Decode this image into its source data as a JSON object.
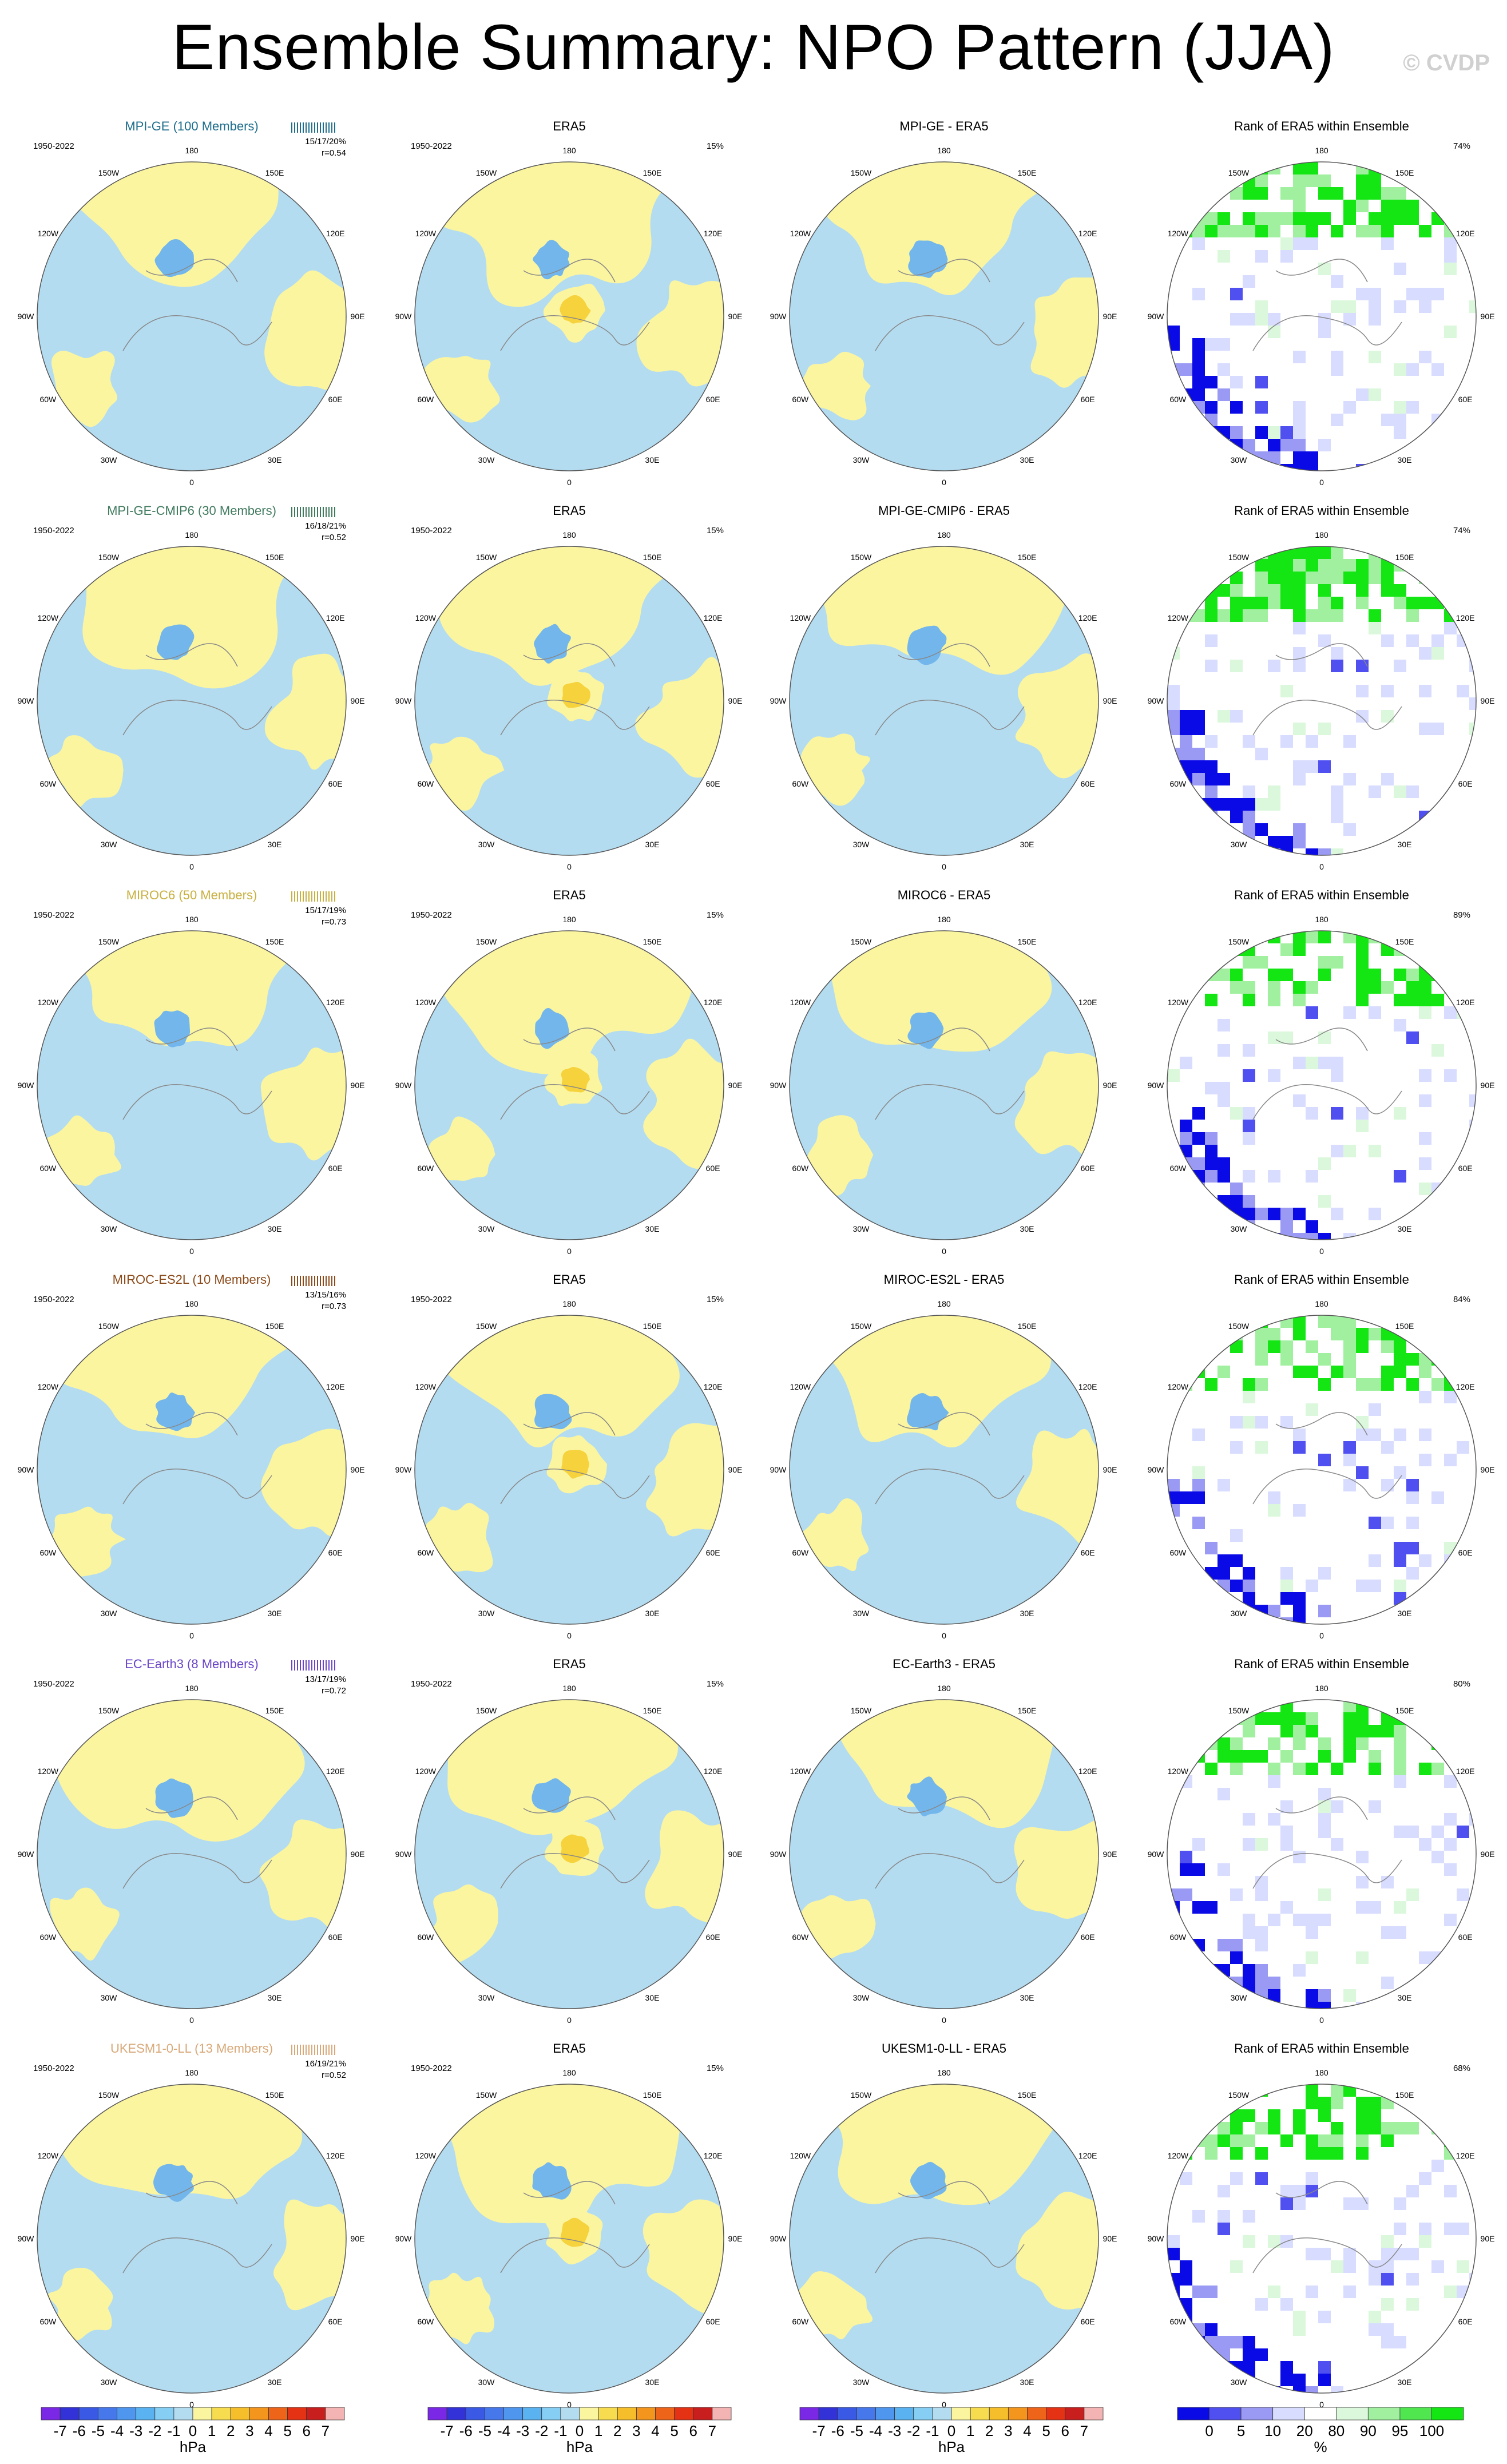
{
  "title": "Ensemble Summary: NPO Pattern (JJA)",
  "watermark": "© CVDP",
  "period": "1950-2022",
  "lon_labels": [
    "180",
    "150E",
    "120E",
    "90E",
    "60E",
    "30E",
    "0",
    "30W",
    "60W",
    "90W",
    "120W",
    "150W"
  ],
  "colors": {
    "ocean_bg": "#b4dcf0",
    "positive_fill": "#fbf5a0",
    "negative_fill": "#72b6ec",
    "strong_positive": "#f6d23c",
    "rank_low": "#0a0ae6",
    "rank_mid": "#d8dcff",
    "rank_high": "#14e614",
    "coast": "#888888"
  },
  "chart_data": [
    {
      "type": "heatmap",
      "map": "polar_stereographic_nh",
      "row_titles": [
        "MPI-GE (100 Members)",
        "MPI-GE-CMIP6 (30 Members)",
        "MIROC6 (50 Members)",
        "MIROC-ES2L (10 Members)",
        "EC-Earth3 (8 Members)",
        "UKESM1-0-LL (13 Members)"
      ],
      "row_title_colors": [
        "#1f6e8c",
        "#3f7a5e",
        "#c8b040",
        "#8b4a1a",
        "#6a46c8",
        "#d8a878"
      ],
      "percent_stats": [
        "15/17/20%",
        "16/18/21%",
        "15/17/19%",
        "13/15/16%",
        "13/17/19%",
        "16/19/21%"
      ],
      "pattern_correlations": [
        "r=0.54",
        "r=0.52",
        "r=0.73",
        "r=0.73",
        "r=0.72",
        "r=0.52"
      ],
      "era5_title": "ERA5",
      "era5_percent": "15%",
      "difference_titles": [
        "MPI-GE - ERA5",
        "MPI-GE-CMIP6 - ERA5",
        "MIROC6 - ERA5",
        "MIROC-ES2L - ERA5",
        "EC-Earth3 - ERA5",
        "UKESM1-0-LL - ERA5"
      ],
      "rank_title": "Rank of ERA5 within Ensemble",
      "rank_percents": [
        "74%",
        "74%",
        "89%",
        "84%",
        "80%",
        "68%"
      ]
    }
  ],
  "colorbars": {
    "hpa_labels": [
      "-7",
      "-6",
      "-5",
      "-4",
      "-3",
      "-2",
      "-1",
      "0",
      "1",
      "2",
      "3",
      "4",
      "5",
      "6",
      "7"
    ],
    "hpa_colors": [
      "#7a28e6",
      "#3232d8",
      "#3a5ae6",
      "#4678ec",
      "#4e96ee",
      "#5ab2f0",
      "#86cef4",
      "#b4dcf0",
      "#fbf5a0",
      "#f8dc50",
      "#f6be2a",
      "#f4961e",
      "#ee6418",
      "#e63214",
      "#c81e1e",
      "#f4b4b4"
    ],
    "hpa_unit": "hPa",
    "rank_labels": [
      "0",
      "5",
      "10",
      "20",
      "80",
      "90",
      "95",
      "100"
    ],
    "rank_colors": [
      "#0a0ae6",
      "#5050f0",
      "#9a9af4",
      "#d8dcff",
      "#ffffff",
      "#dcf8dc",
      "#a0f0a0",
      "#50e650",
      "#14e614"
    ],
    "rank_unit": "%"
  }
}
